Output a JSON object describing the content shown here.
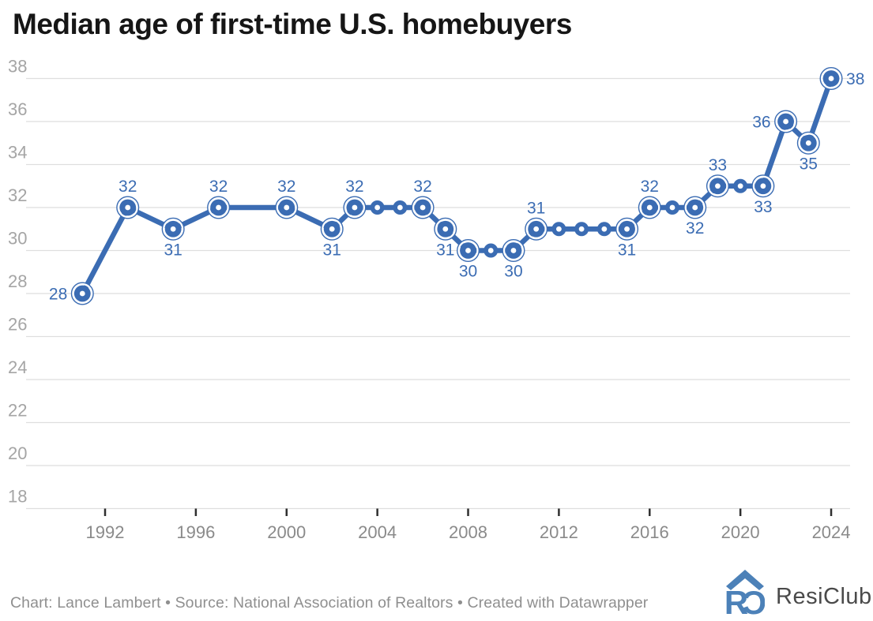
{
  "title": "Median age of first-time U.S. homebuyers",
  "footer": {
    "credit": "Chart: Lance Lambert • Source: National Association of Realtors • Created with Datawrapper",
    "logo_text": "ResiClub"
  },
  "colors": {
    "line_blue": "#3b6cb3",
    "label_blue": "#3b6cb3",
    "gridline_gray": "#dedede",
    "y_tick_label_gray": "#a5a5a5",
    "x_tick_label_gray": "#8a8a8a",
    "tick_mark_dark": "#2f2f2f",
    "title_black": "#161616",
    "credit_gray": "#8f8f8f",
    "logo_blue": "#4c81b8",
    "background": "#ffffff"
  },
  "chart_data": {
    "type": "line",
    "title": "Median age of first-time U.S. homebuyers",
    "xlabel": "",
    "ylabel": "",
    "ylim": [
      18,
      38
    ],
    "xlim": [
      1989.5,
      2025.5
    ],
    "grid": "horizontal",
    "legend": "none",
    "y_ticks": [
      38,
      36,
      34,
      32,
      30,
      28,
      26,
      24,
      22,
      20,
      18
    ],
    "x_ticks": [
      1992,
      1996,
      2000,
      2004,
      2008,
      2012,
      2016,
      2020,
      2024
    ],
    "series_name": "Median age of first-time U.S. homebuyers",
    "points": [
      {
        "year": 1991,
        "value": 28,
        "label": "28",
        "label_pos": "left"
      },
      {
        "year": 1993,
        "value": 32,
        "label": "32",
        "label_pos": "above"
      },
      {
        "year": 1995,
        "value": 31,
        "label": "31",
        "label_pos": "below"
      },
      {
        "year": 1997,
        "value": 32,
        "label": "32",
        "label_pos": "above"
      },
      {
        "year": 2000,
        "value": 32,
        "label": "32",
        "label_pos": "above"
      },
      {
        "year": 2002,
        "value": 31,
        "label": "31",
        "label_pos": "below"
      },
      {
        "year": 2003,
        "value": 32,
        "label": "32",
        "label_pos": "above"
      },
      {
        "year": 2004,
        "value": 32
      },
      {
        "year": 2005,
        "value": 32
      },
      {
        "year": 2006,
        "value": 32,
        "label": "32",
        "label_pos": "above"
      },
      {
        "year": 2007,
        "value": 31,
        "label": "31",
        "label_pos": "below"
      },
      {
        "year": 2008,
        "value": 30,
        "label": "30",
        "label_pos": "below"
      },
      {
        "year": 2009,
        "value": 30
      },
      {
        "year": 2010,
        "value": 30,
        "label": "30",
        "label_pos": "below"
      },
      {
        "year": 2011,
        "value": 31,
        "label": "31",
        "label_pos": "above"
      },
      {
        "year": 2012,
        "value": 31
      },
      {
        "year": 2013,
        "value": 31
      },
      {
        "year": 2014,
        "value": 31
      },
      {
        "year": 2015,
        "value": 31,
        "label": "31",
        "label_pos": "below"
      },
      {
        "year": 2016,
        "value": 32,
        "label": "32",
        "label_pos": "above"
      },
      {
        "year": 2017,
        "value": 32
      },
      {
        "year": 2018,
        "value": 32,
        "label": "32",
        "label_pos": "below"
      },
      {
        "year": 2019,
        "value": 33,
        "label": "33",
        "label_pos": "above"
      },
      {
        "year": 2020,
        "value": 33
      },
      {
        "year": 2021,
        "value": 33,
        "label": "33",
        "label_pos": "below"
      },
      {
        "year": 2022,
        "value": 36,
        "label": "36",
        "label_pos": "left"
      },
      {
        "year": 2023,
        "value": 35,
        "label": "35",
        "label_pos": "below"
      },
      {
        "year": 2024,
        "value": 38,
        "label": "38",
        "label_pos": "right"
      }
    ]
  }
}
